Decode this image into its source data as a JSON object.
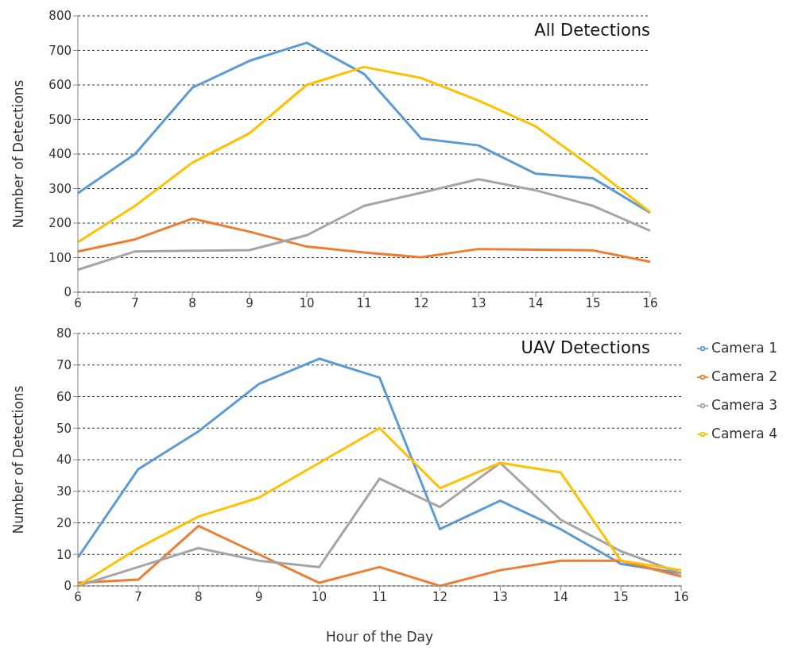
{
  "chart_data": [
    {
      "type": "line",
      "title": "All Detections",
      "ylabel": "Number of Detections",
      "categories": [
        "6",
        "7",
        "8",
        "9",
        "10",
        "11",
        "12",
        "13",
        "14",
        "15",
        "16"
      ],
      "ylim": [
        0,
        800
      ],
      "yticks": [
        0,
        100,
        200,
        300,
        400,
        500,
        600,
        700,
        800
      ],
      "grid": "y",
      "legend": false,
      "marker": "none",
      "line_style": "solid",
      "series": [
        {
          "color": "#5b9bd5",
          "values": [
            287,
            400,
            592,
            670,
            722,
            632,
            445,
            425,
            343,
            330,
            230
          ]
        },
        {
          "color": "#ed7d31",
          "values": [
            118,
            153,
            213,
            175,
            132,
            115,
            101,
            125,
            123,
            121,
            88
          ]
        },
        {
          "color": "#a5a5a5",
          "values": [
            65,
            118,
            120,
            122,
            165,
            250,
            288,
            327,
            295,
            250,
            178
          ]
        },
        {
          "color": "#ffc000",
          "values": [
            145,
            250,
            375,
            460,
            600,
            652,
            620,
            555,
            480,
            360,
            232
          ]
        }
      ]
    },
    {
      "type": "line",
      "title": "UAV Detections",
      "ylabel": "Number of Detections",
      "xlabel": "Hour of the Day",
      "categories": [
        "6",
        "7",
        "8",
        "9",
        "10",
        "11",
        "12",
        "13",
        "14",
        "15",
        "16"
      ],
      "ylim": [
        0,
        80
      ],
      "yticks": [
        0,
        10,
        20,
        30,
        40,
        50,
        60,
        70,
        80
      ],
      "grid": "y",
      "legend": "top right",
      "marker": "none",
      "line_style": "solid",
      "series": [
        {
          "name": "Camera 1",
          "color": "#5b9bd5",
          "values": [
            9,
            37,
            49,
            64,
            72,
            66,
            18,
            27,
            18,
            7,
            4
          ]
        },
        {
          "name": "Camera 2",
          "color": "#ed7d31",
          "values": [
            1,
            2,
            19,
            10,
            1,
            6,
            0,
            5,
            8,
            8,
            3
          ]
        },
        {
          "name": "Camera 3",
          "color": "#a5a5a5",
          "values": [
            0,
            6,
            12,
            8,
            6,
            34,
            25,
            39,
            21,
            11,
            4
          ]
        },
        {
          "name": "Camera 4",
          "color": "#ffc000",
          "values": [
            0,
            12,
            22,
            28,
            39,
            50,
            31,
            39,
            36,
            8,
            5
          ]
        }
      ]
    }
  ]
}
